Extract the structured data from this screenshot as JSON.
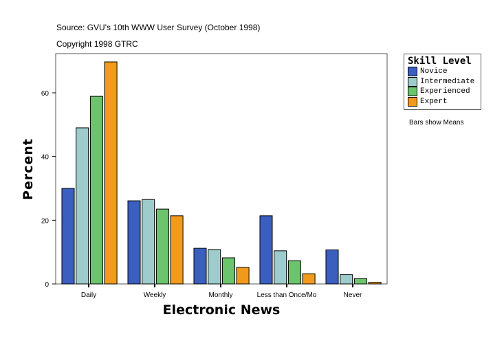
{
  "header": {
    "source": "Source: GVU's 10th WWW User Survey (October 1998)",
    "copyright": "Copyright 1998 GTRC"
  },
  "note": "Bars show Means",
  "chart_data": {
    "type": "bar",
    "xlabel": "Electronic News",
    "ylabel": "Percent",
    "ylim": [
      0,
      72.3
    ],
    "yticks": [
      0,
      20,
      40,
      60
    ],
    "categories": [
      "Daily",
      "Weekly",
      "Monthly",
      "Less than Once/Mo",
      "Never"
    ],
    "legend_title": "Skill Level",
    "legend_position": "right",
    "grid": false,
    "series": [
      {
        "name": "Novice",
        "color": "#3a5fbf",
        "values": [
          30.0,
          26.1,
          11.2,
          21.4,
          10.7
        ]
      },
      {
        "name": "Intermediate",
        "color": "#9ecbcb",
        "values": [
          49.0,
          26.5,
          10.8,
          10.4,
          2.9
        ]
      },
      {
        "name": "Experienced",
        "color": "#6cc46c",
        "values": [
          58.9,
          23.5,
          8.2,
          7.3,
          1.7
        ]
      },
      {
        "name": "Expert",
        "color": "#f29a1c",
        "values": [
          69.7,
          21.4,
          5.2,
          3.2,
          0.5
        ]
      }
    ]
  }
}
